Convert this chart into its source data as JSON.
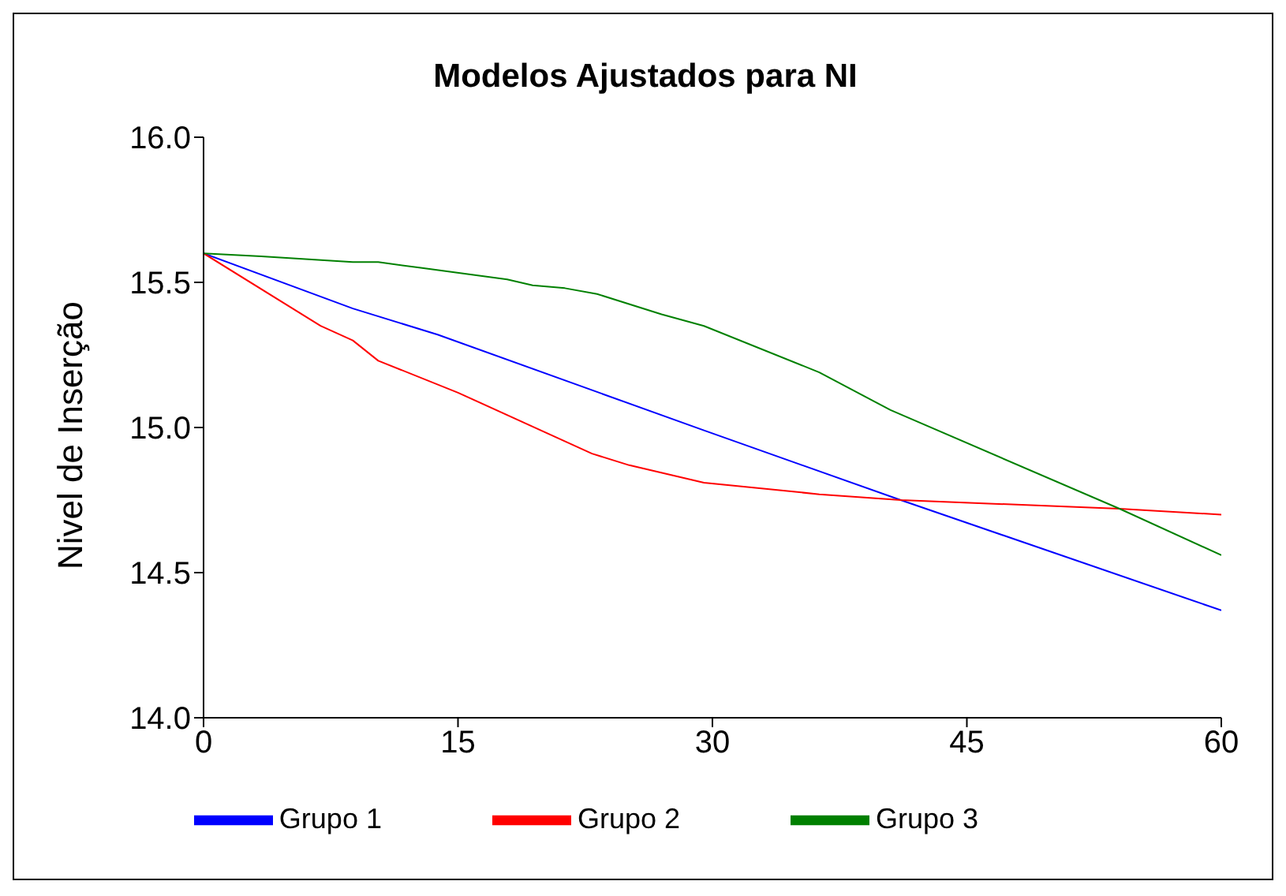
{
  "chart_data": {
    "type": "line",
    "title": "Modelos Ajustados para NI",
    "ylabel": "Nivel de Inserção",
    "xlim": [
      0,
      60
    ],
    "xticks": [
      0,
      15,
      30,
      45,
      60
    ],
    "ylim": [
      14,
      16
    ],
    "yticks": [
      {
        "value": 14,
        "label": "14.0"
      },
      {
        "value": 14.5,
        "label": "14.5"
      },
      {
        "value": 15,
        "label": "15.0"
      },
      {
        "value": 15.5,
        "label": "15.5"
      },
      {
        "value": 16,
        "label": "16.0"
      }
    ],
    "grid": false,
    "legend": "bottom",
    "marker": "none",
    "line_style": "solid",
    "series": [
      {
        "name": "Grupo 1",
        "color": "#0000ff",
        "x": [
          0,
          8.8,
          13.8,
          29.5,
          41.1,
          60
        ],
        "values": [
          15.6,
          15.41,
          15.32,
          14.99,
          14.75,
          14.37
        ]
      },
      {
        "name": "Grupo 2",
        "color": "#ff0000",
        "x": [
          0,
          6.9,
          8.8,
          10.3,
          15,
          22.9,
          25.1,
          29.5,
          36.3,
          41.1,
          54,
          60
        ],
        "values": [
          15.6,
          15.35,
          15.3,
          15.23,
          15.12,
          14.91,
          14.87,
          14.81,
          14.77,
          14.75,
          14.72,
          14.7
        ]
      },
      {
        "name": "Grupo 3",
        "color": "#008000",
        "x": [
          0,
          3.4,
          8.8,
          10.3,
          12.8,
          17.9,
          19.4,
          21.3,
          23.2,
          27,
          29.5,
          36.3,
          40.5,
          54,
          60
        ],
        "values": [
          15.6,
          15.59,
          15.57,
          15.57,
          15.55,
          15.51,
          15.49,
          15.48,
          15.46,
          15.39,
          15.35,
          15.19,
          15.06,
          14.72,
          14.56
        ]
      }
    ]
  }
}
